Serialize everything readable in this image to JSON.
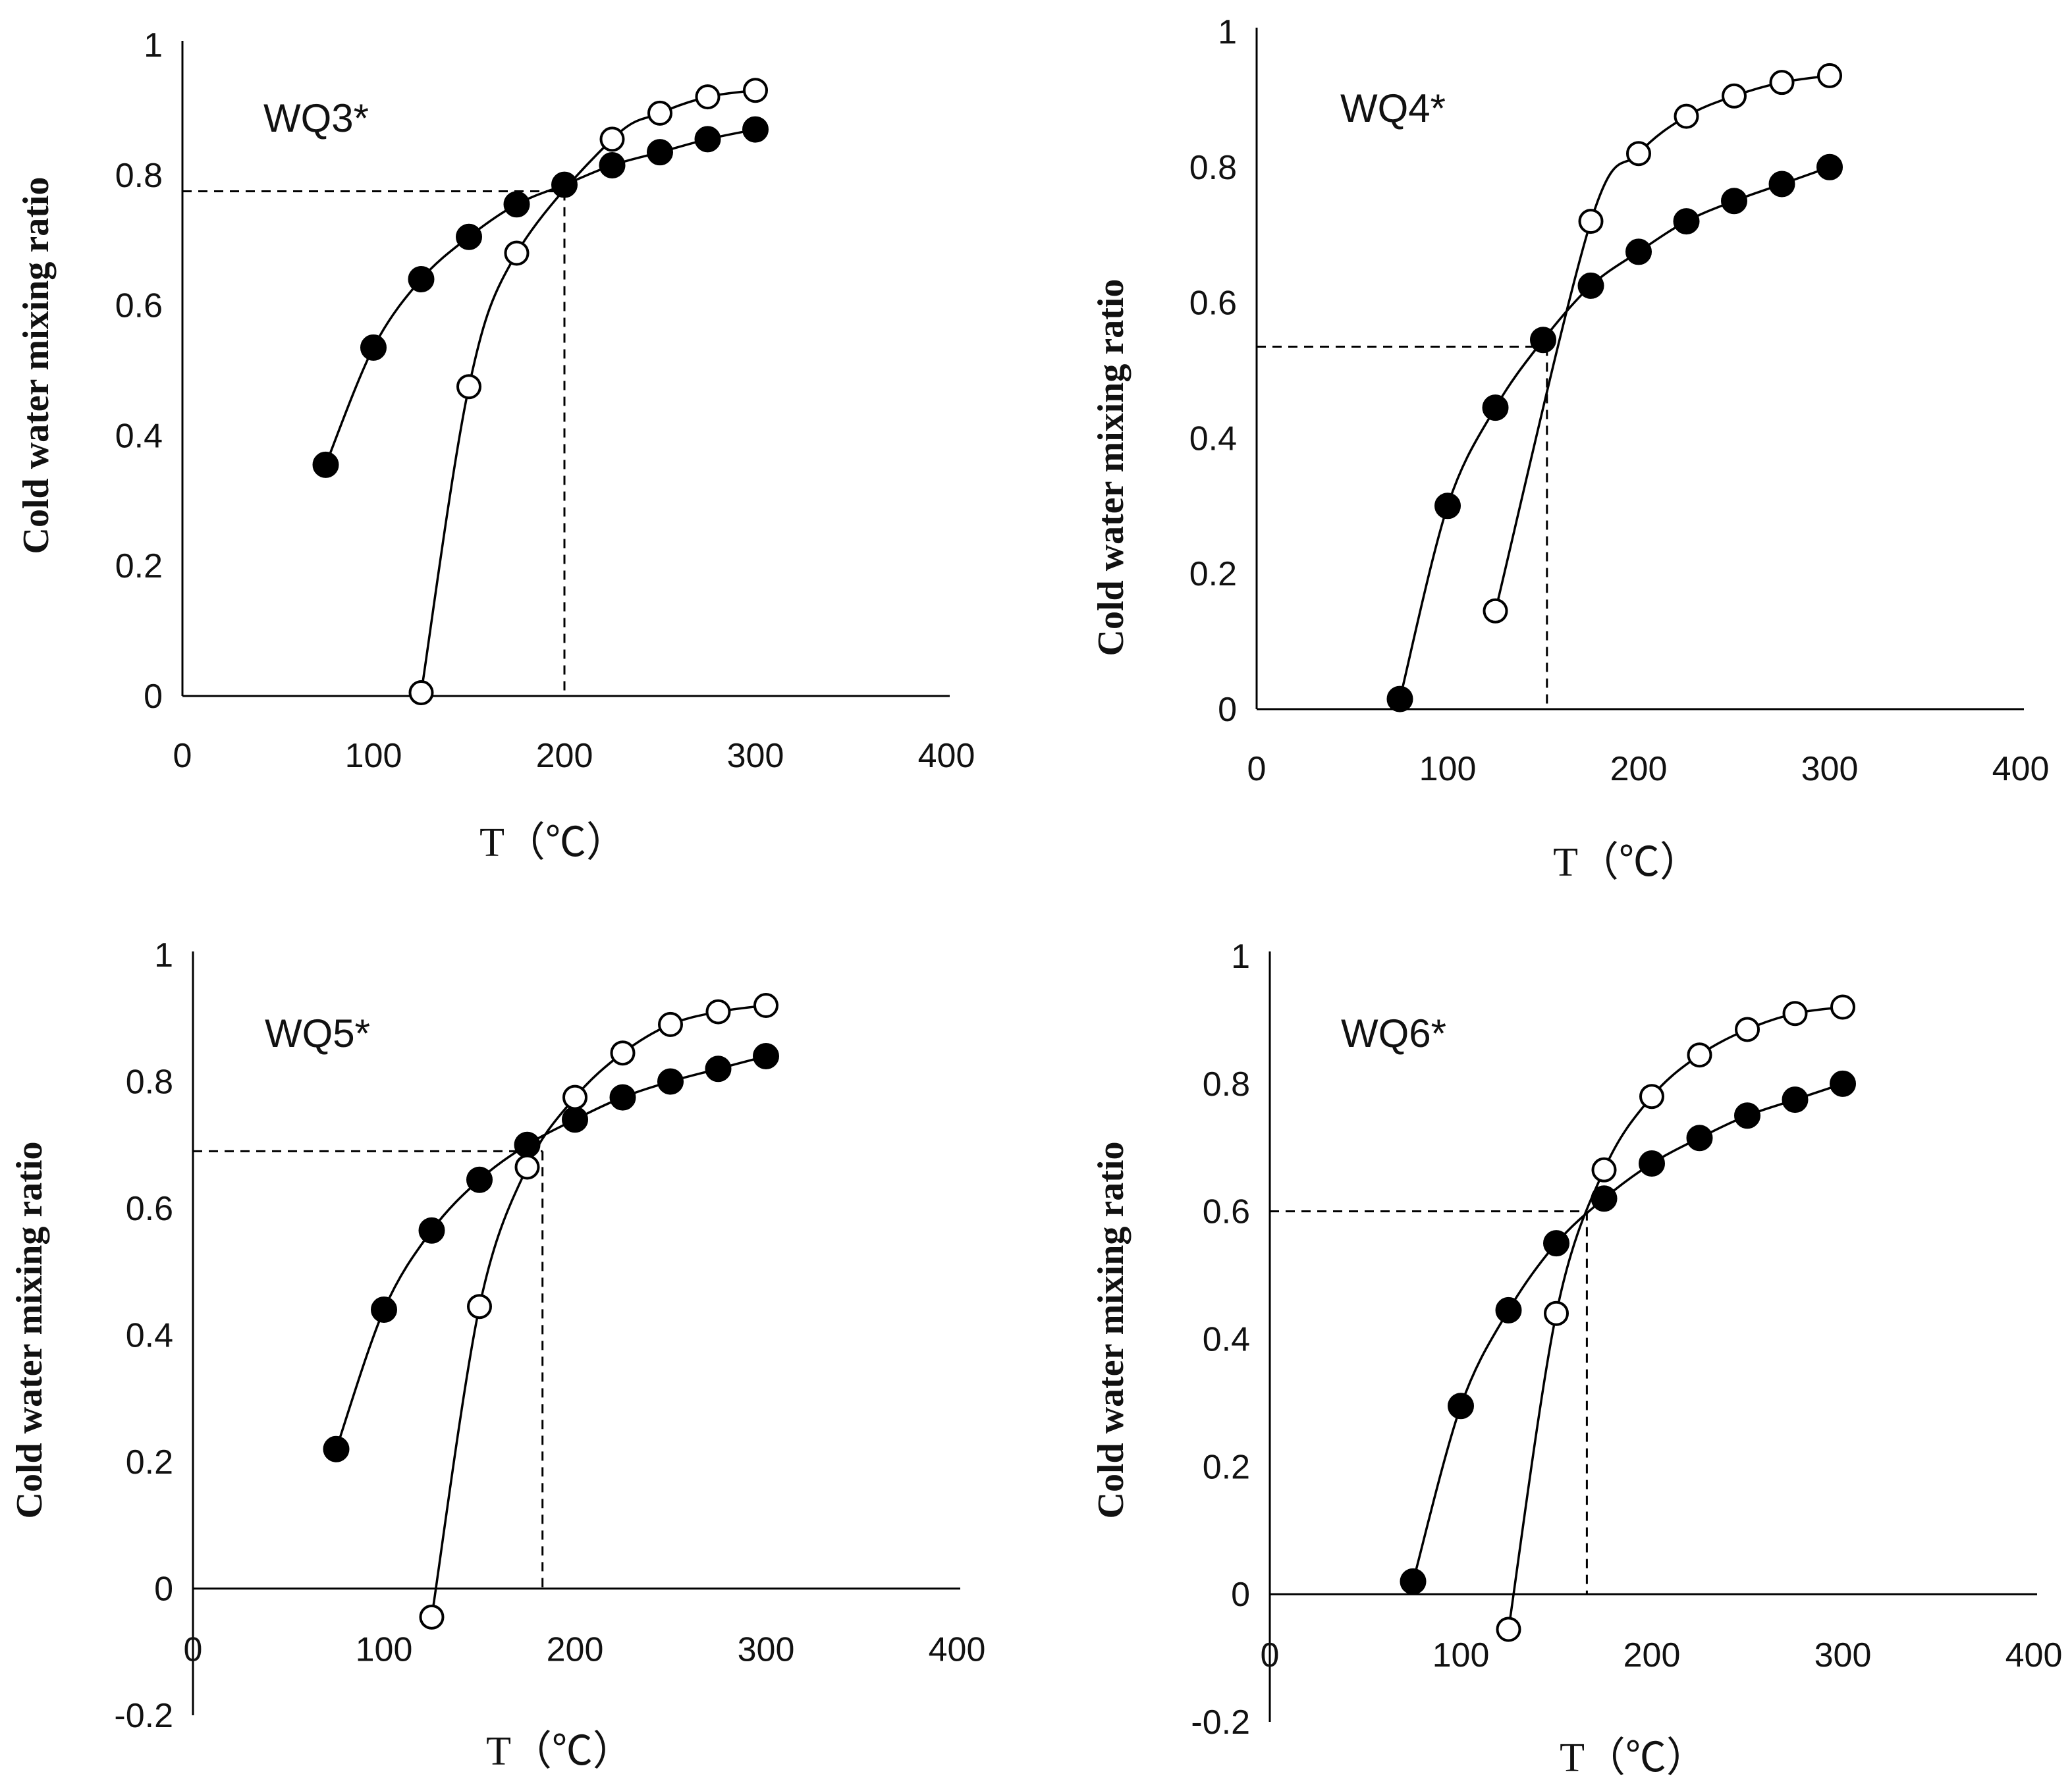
{
  "chart_data": [
    {
      "type": "line",
      "title": "WQ3*",
      "xlabel": "T（℃）",
      "ylabel": "Cold water mixing ratio",
      "xlim": [
        0,
        400
      ],
      "ylim": [
        0,
        1
      ],
      "xticks": [
        "0",
        "100",
        "200",
        "300",
        "400"
      ],
      "yticks": [
        "0",
        "0.2",
        "0.4",
        "0.6",
        "0.8",
        "1"
      ],
      "series": [
        {
          "name": "filled",
          "marker": "filled-circle",
          "x": [
            75,
            100,
            125,
            150,
            175,
            200,
            225,
            250,
            275,
            300
          ],
          "y": [
            0.355,
            0.535,
            0.64,
            0.705,
            0.755,
            0.785,
            0.815,
            0.835,
            0.855,
            0.87
          ]
        },
        {
          "name": "open",
          "marker": "open-circle",
          "x": [
            125,
            150,
            175,
            225,
            250,
            275,
            300
          ],
          "y": [
            0.005,
            0.475,
            0.68,
            0.855,
            0.895,
            0.92,
            0.93
          ]
        }
      ],
      "intersection": {
        "x": 200,
        "y": 0.775
      }
    },
    {
      "type": "line",
      "title": "WQ4*",
      "xlabel": "T（℃）",
      "ylabel": "Cold water mixing ratio",
      "xlim": [
        0,
        400
      ],
      "ylim": [
        0,
        1
      ],
      "xticks": [
        "0",
        "100",
        "200",
        "300",
        "400"
      ],
      "yticks": [
        "0",
        "0.2",
        "0.4",
        "0.6",
        "0.8",
        "1"
      ],
      "series": [
        {
          "name": "filled",
          "marker": "filled-circle",
          "x": [
            75,
            100,
            125,
            150,
            175,
            200,
            225,
            250,
            275,
            300
          ],
          "y": [
            0.015,
            0.3,
            0.445,
            0.545,
            0.625,
            0.675,
            0.72,
            0.75,
            0.775,
            0.8
          ]
        },
        {
          "name": "open",
          "marker": "open-circle",
          "x": [
            125,
            175,
            200,
            225,
            250,
            275,
            300
          ],
          "y": [
            0.145,
            0.72,
            0.82,
            0.875,
            0.905,
            0.925,
            0.935
          ]
        }
      ],
      "intersection": {
        "x": 152,
        "y": 0.535
      }
    },
    {
      "type": "line",
      "title": "WQ5*",
      "xlabel": "T（℃）",
      "ylabel": "Cold water mixing ratio",
      "xlim": [
        0,
        400
      ],
      "ylim": [
        -0.2,
        1
      ],
      "xticks": [
        "0",
        "100",
        "200",
        "300",
        "400"
      ],
      "yticks": [
        "-0.2",
        "0",
        "0.2",
        "0.4",
        "0.6",
        "0.8",
        "1"
      ],
      "series": [
        {
          "name": "filled",
          "marker": "filled-circle",
          "x": [
            75,
            100,
            125,
            150,
            175,
            200,
            225,
            250,
            275,
            300
          ],
          "y": [
            0.22,
            0.44,
            0.565,
            0.645,
            0.7,
            0.74,
            0.775,
            0.8,
            0.82,
            0.84
          ]
        },
        {
          "name": "open",
          "marker": "open-circle",
          "x": [
            125,
            150,
            175,
            200,
            225,
            250,
            275,
            300
          ],
          "y": [
            -0.045,
            0.445,
            0.665,
            0.775,
            0.845,
            0.89,
            0.91,
            0.92
          ]
        }
      ],
      "intersection": {
        "x": 183,
        "y": 0.69
      }
    },
    {
      "type": "line",
      "title": "WQ6*",
      "xlabel": "T（℃）",
      "ylabel": "Cold water mixing ratio",
      "xlim": [
        0,
        400
      ],
      "ylim": [
        -0.2,
        1
      ],
      "xticks": [
        "0",
        "100",
        "200",
        "300",
        "400"
      ],
      "yticks": [
        "-0.2",
        "0",
        "0.2",
        "0.4",
        "0.6",
        "0.8",
        "1"
      ],
      "series": [
        {
          "name": "filled",
          "marker": "filled-circle",
          "x": [
            75,
            100,
            125,
            150,
            175,
            200,
            225,
            250,
            275,
            300
          ],
          "y": [
            0.02,
            0.295,
            0.445,
            0.55,
            0.62,
            0.675,
            0.715,
            0.75,
            0.775,
            0.8
          ]
        },
        {
          "name": "open",
          "marker": "open-circle",
          "x": [
            125,
            150,
            175,
            200,
            225,
            250,
            275,
            300
          ],
          "y": [
            -0.055,
            0.44,
            0.665,
            0.78,
            0.845,
            0.885,
            0.91,
            0.92
          ]
        }
      ],
      "intersection": {
        "x": 166,
        "y": 0.6
      }
    }
  ]
}
